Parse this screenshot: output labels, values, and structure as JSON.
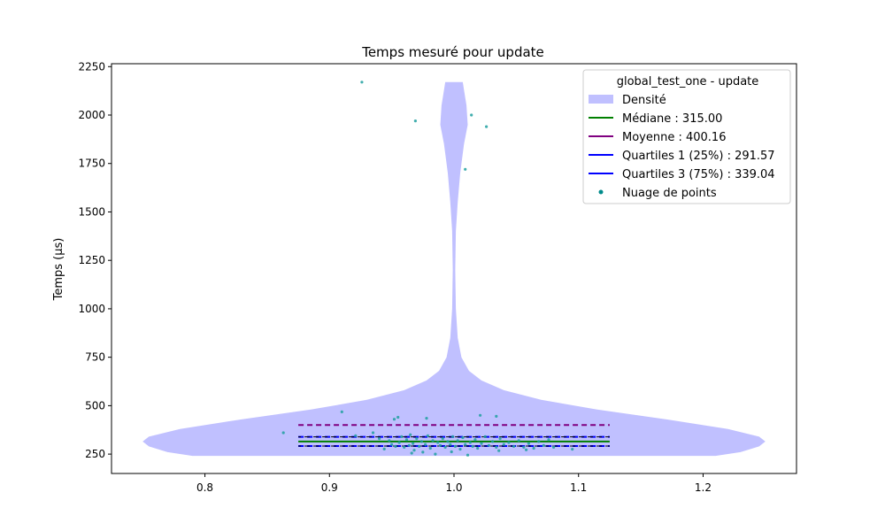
{
  "chart_data": {
    "type": "violin",
    "title": "Temps mesuré pour update",
    "xlabel": "",
    "ylabel": "Temps (µs)",
    "xlim": [
      0.725,
      1.275
    ],
    "ylim": [
      150,
      2265
    ],
    "xticks": [
      0.8,
      0.9,
      1.0,
      1.1,
      1.2
    ],
    "yticks": [
      250,
      500,
      750,
      1000,
      1250,
      1500,
      1750,
      2000,
      2250
    ],
    "grid": false,
    "legend_position": "top-right",
    "legend_title": "global_test_one - update",
    "legend": [
      {
        "label": "Densité",
        "kind": "patch",
        "color": "#c0c0ff"
      },
      {
        "label": "Médiane : 315.00",
        "kind": "line",
        "color": "#008000"
      },
      {
        "label": "Moyenne : 400.16",
        "kind": "line",
        "color": "#800080"
      },
      {
        "label": "Quartiles 1 (25%) : 291.57",
        "kind": "line",
        "color": "#0000ff"
      },
      {
        "label": "Quartiles 3 (75%) : 339.04",
        "kind": "line",
        "color": "#0000ff"
      },
      {
        "label": "Nuage de points",
        "kind": "marker",
        "color": "#008b8b"
      }
    ],
    "stats": {
      "median": 315.0,
      "mean": 400.16,
      "q1": 291.57,
      "q3": 339.04
    },
    "stat_lines_x": [
      0.875,
      1.125
    ],
    "violin": {
      "center": 1.0,
      "density_color": "#c0c0ff",
      "profile": [
        {
          "y": 241,
          "w": 0.21
        },
        {
          "y": 260,
          "w": 0.23
        },
        {
          "y": 290,
          "w": 0.245
        },
        {
          "y": 315,
          "w": 0.25
        },
        {
          "y": 340,
          "w": 0.245
        },
        {
          "y": 380,
          "w": 0.22
        },
        {
          "y": 430,
          "w": 0.17
        },
        {
          "y": 480,
          "w": 0.115
        },
        {
          "y": 530,
          "w": 0.07
        },
        {
          "y": 580,
          "w": 0.04
        },
        {
          "y": 630,
          "w": 0.022
        },
        {
          "y": 680,
          "w": 0.012
        },
        {
          "y": 750,
          "w": 0.006
        },
        {
          "y": 850,
          "w": 0.003
        },
        {
          "y": 1000,
          "w": 0.0015
        },
        {
          "y": 1200,
          "w": 0.001
        },
        {
          "y": 1400,
          "w": 0.0015
        },
        {
          "y": 1550,
          "w": 0.003
        },
        {
          "y": 1700,
          "w": 0.005
        },
        {
          "y": 1850,
          "w": 0.008
        },
        {
          "y": 1950,
          "w": 0.011
        },
        {
          "y": 2050,
          "w": 0.01
        },
        {
          "y": 2130,
          "w": 0.008
        },
        {
          "y": 2170,
          "w": 0.007
        }
      ]
    },
    "points_color": "#20a0a0",
    "points": [
      [
        0.926,
        2170
      ],
      [
        0.969,
        1970
      ],
      [
        1.014,
        2000
      ],
      [
        1.026,
        1940
      ],
      [
        1.009,
        1720
      ],
      [
        0.863,
        360
      ],
      [
        0.91,
        468
      ],
      [
        0.952,
        430
      ],
      [
        0.955,
        440
      ],
      [
        0.978,
        435
      ],
      [
        1.021,
        450
      ],
      [
        1.034,
        445
      ],
      [
        0.921,
        345
      ],
      [
        0.935,
        360
      ],
      [
        0.94,
        330
      ],
      [
        0.948,
        320
      ],
      [
        0.95,
        300
      ],
      [
        0.953,
        290
      ],
      [
        0.956,
        310
      ],
      [
        0.958,
        340
      ],
      [
        0.96,
        285
      ],
      [
        0.962,
        325
      ],
      [
        0.964,
        295
      ],
      [
        0.965,
        350
      ],
      [
        0.967,
        305
      ],
      [
        0.968,
        270
      ],
      [
        0.97,
        330
      ],
      [
        0.972,
        290
      ],
      [
        0.974,
        315
      ],
      [
        0.975,
        260
      ],
      [
        0.977,
        300
      ],
      [
        0.979,
        345
      ],
      [
        0.981,
        280
      ],
      [
        0.983,
        320
      ],
      [
        0.985,
        250
      ],
      [
        0.987,
        310
      ],
      [
        0.989,
        295
      ],
      [
        0.991,
        330
      ],
      [
        0.993,
        285
      ],
      [
        0.995,
        315
      ],
      [
        0.997,
        300
      ],
      [
        0.999,
        340
      ],
      [
        1.001,
        290
      ],
      [
        1.003,
        320
      ],
      [
        1.005,
        275
      ],
      [
        1.007,
        335
      ],
      [
        1.009,
        300
      ],
      [
        1.011,
        245
      ],
      [
        1.013,
        310
      ],
      [
        1.015,
        290
      ],
      [
        1.017,
        325
      ],
      [
        1.019,
        280
      ],
      [
        1.022,
        305
      ],
      [
        1.025,
        340
      ],
      [
        1.028,
        295
      ],
      [
        1.031,
        315
      ],
      [
        1.034,
        285
      ],
      [
        1.037,
        330
      ],
      [
        1.04,
        300
      ],
      [
        1.044,
        310
      ],
      [
        1.048,
        290
      ],
      [
        1.052,
        320
      ],
      [
        1.056,
        285
      ],
      [
        1.06,
        305
      ],
      [
        1.064,
        280
      ],
      [
        1.068,
        315
      ],
      [
        1.072,
        295
      ],
      [
        1.076,
        325
      ],
      [
        1.08,
        285
      ],
      [
        1.095,
        275
      ],
      [
        0.966,
        255
      ],
      [
        0.998,
        262
      ],
      [
        1.036,
        268
      ],
      [
        0.944,
        276
      ],
      [
        1.058,
        272
      ]
    ]
  }
}
